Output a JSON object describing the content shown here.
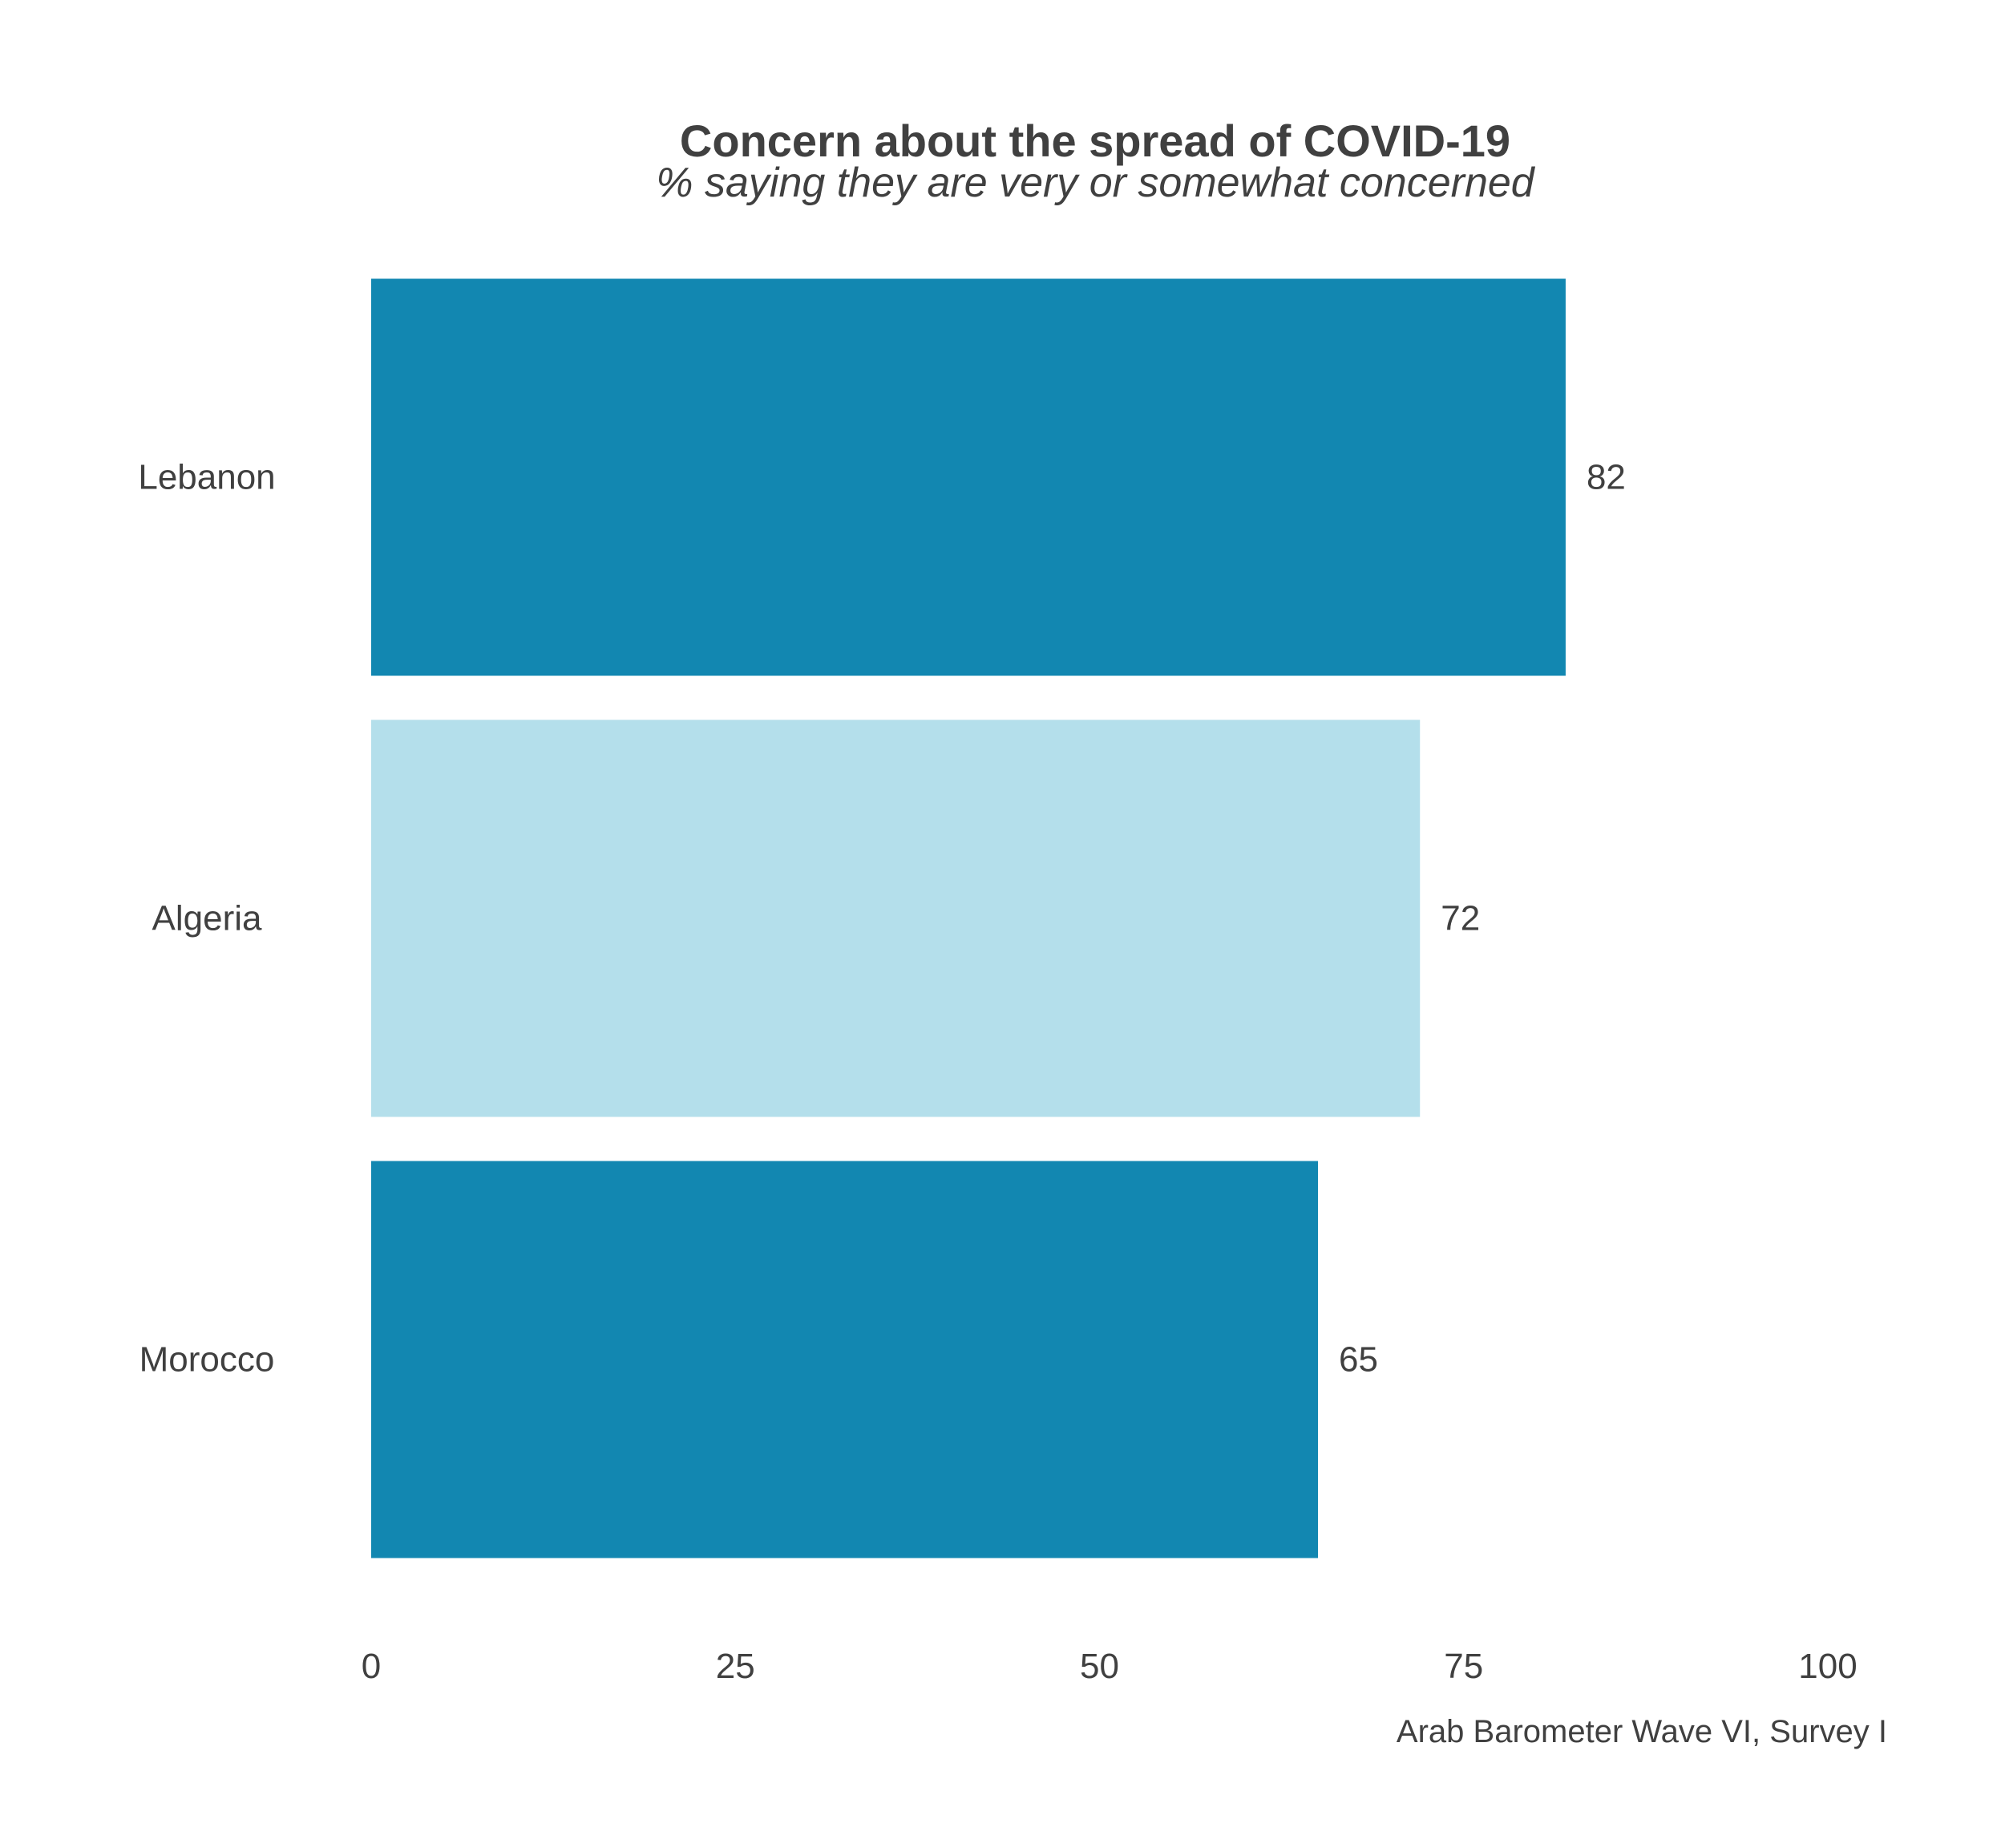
{
  "chart_data": {
    "type": "bar",
    "orientation": "horizontal",
    "title": "Concern about the spread of COVID-19",
    "subtitle": "% saying they are very or somewhat concerned",
    "caption": "Arab Barometer Wave VI, Survey I",
    "categories": [
      "Lebanon",
      "Algeria",
      "Morocco"
    ],
    "values": [
      82,
      72,
      65
    ],
    "value_labels": [
      "82",
      "72",
      "65"
    ],
    "bar_colors": [
      "#1287b1",
      "#b4dfeb",
      "#1287b1"
    ],
    "xlim": [
      0,
      100
    ],
    "xticks": [
      0,
      25,
      50,
      75,
      100
    ],
    "xtick_labels": [
      "0",
      "25",
      "50",
      "75",
      "100"
    ],
    "grid": false,
    "legend": "none"
  }
}
